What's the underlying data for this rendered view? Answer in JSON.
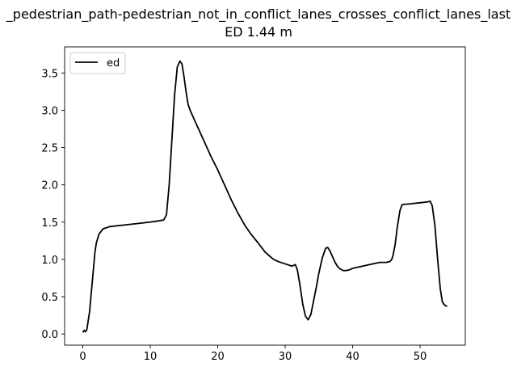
{
  "chart_data": {
    "type": "line",
    "title": "_pedestrian_path-pedestrian_not_in_conflict_lanes_crosses_conflict_lanes_last",
    "subtitle": "ED 1.44 m",
    "xlabel": "",
    "ylabel": "",
    "xlim": [
      -2.7,
      56.7
    ],
    "ylim": [
      -0.15,
      3.85
    ],
    "xticks": [
      0,
      10,
      20,
      30,
      40,
      50
    ],
    "yticks": [
      0.0,
      0.5,
      1.0,
      1.5,
      2.0,
      2.5,
      3.0,
      3.5
    ],
    "ytick_labels": [
      "0.0",
      "0.5",
      "1.0",
      "1.5",
      "2.0",
      "2.5",
      "3.0",
      "3.5"
    ],
    "grid": false,
    "legend_position": "top-left",
    "series": [
      {
        "name": "ed",
        "color": "#000000",
        "x": [
          0,
          0.2,
          0.4,
          0.6,
          1.0,
          1.4,
          1.8,
          2.0,
          2.4,
          3.0,
          4.0,
          6.0,
          8.0,
          10.0,
          11.5,
          12.0,
          12.4,
          12.8,
          13.2,
          13.6,
          14.0,
          14.4,
          14.7,
          15.0,
          15.3,
          15.6,
          16.0,
          16.5,
          17.0,
          18.0,
          19.0,
          20.0,
          20.5,
          21.0,
          22.0,
          23.0,
          24.0,
          25.0,
          26.0,
          27.0,
          28.0,
          28.5,
          29.0,
          30.0,
          31.0,
          31.5,
          31.8,
          32.2,
          32.6,
          33.0,
          33.4,
          33.8,
          34.2,
          34.6,
          35.0,
          35.5,
          36.0,
          36.3,
          36.6,
          37.0,
          37.4,
          37.8,
          38.2,
          38.6,
          39.0,
          39.5,
          40.0,
          42.0,
          44.0,
          45.0,
          45.5,
          45.8,
          46.0,
          46.3,
          46.6,
          47.0,
          47.3,
          47.6,
          48.0,
          50.0,
          51.0,
          51.5,
          51.8,
          52.2,
          52.6,
          53.0,
          53.3,
          53.6,
          54.0
        ],
        "y": [
          0.02,
          0.05,
          0.03,
          0.06,
          0.3,
          0.7,
          1.1,
          1.22,
          1.34,
          1.41,
          1.44,
          1.46,
          1.48,
          1.5,
          1.52,
          1.53,
          1.6,
          2.0,
          2.6,
          3.2,
          3.58,
          3.66,
          3.62,
          3.45,
          3.25,
          3.08,
          2.98,
          2.88,
          2.78,
          2.58,
          2.38,
          2.2,
          2.1,
          2.0,
          1.8,
          1.62,
          1.46,
          1.33,
          1.22,
          1.1,
          1.02,
          0.99,
          0.97,
          0.94,
          0.91,
          0.93,
          0.86,
          0.65,
          0.4,
          0.24,
          0.19,
          0.26,
          0.44,
          0.62,
          0.82,
          1.02,
          1.15,
          1.16,
          1.12,
          1.04,
          0.96,
          0.9,
          0.87,
          0.85,
          0.85,
          0.86,
          0.88,
          0.92,
          0.96,
          0.96,
          0.97,
          1.0,
          1.06,
          1.2,
          1.42,
          1.65,
          1.73,
          1.74,
          1.74,
          1.76,
          1.77,
          1.78,
          1.72,
          1.45,
          1.0,
          0.6,
          0.43,
          0.39,
          0.37
        ]
      }
    ]
  }
}
